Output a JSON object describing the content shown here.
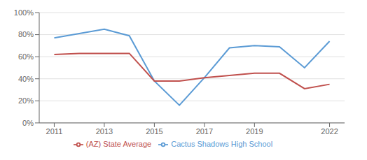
{
  "chart_data": {
    "type": "line",
    "x": [
      2011,
      2012,
      2013,
      2014,
      2015,
      2016,
      2017,
      2018,
      2019,
      2020,
      2021,
      2022
    ],
    "series": [
      {
        "name": "Cactus Shadows High School",
        "color": "#5B9BD5",
        "values": [
          0.77,
          0.81,
          0.85,
          0.79,
          0.38,
          0.16,
          0.41,
          0.68,
          0.7,
          0.69,
          0.5,
          0.74
        ]
      },
      {
        "name": "(AZ) State Average",
        "color": "#C0504D",
        "values": [
          0.62,
          0.63,
          0.63,
          0.63,
          0.38,
          0.38,
          0.41,
          0.43,
          0.45,
          0.45,
          0.31,
          0.35
        ]
      }
    ],
    "xlim": [
      2010.4,
      2022.6
    ],
    "xticks": [
      2011,
      2013,
      2015,
      2017,
      2019,
      2022
    ],
    "ylim": [
      0,
      1.0
    ],
    "yticks": [
      {
        "value": 0,
        "label": "0%"
      },
      {
        "value": 0.2,
        "label": "20%"
      },
      {
        "value": 0.4,
        "label": "40%"
      },
      {
        "value": 0.6,
        "label": "60%"
      },
      {
        "value": 0.8,
        "label": "80%"
      },
      {
        "value": 1.0,
        "label": "100%"
      }
    ],
    "grid": true,
    "legend": "bottom"
  }
}
